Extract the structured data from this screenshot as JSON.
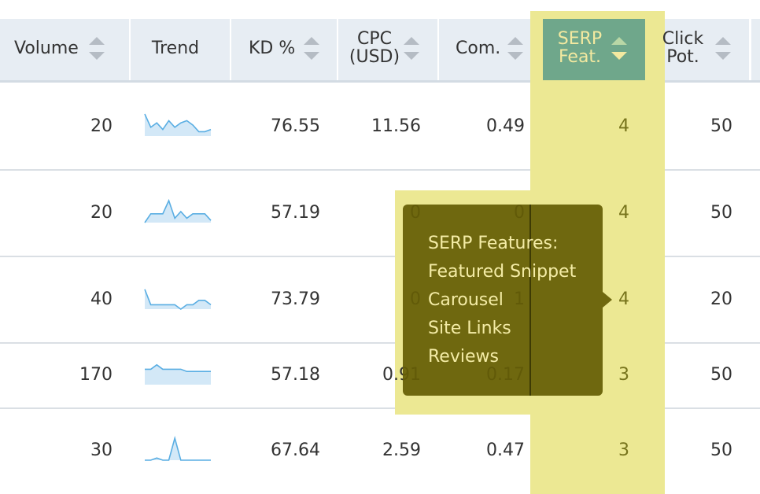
{
  "headers": [
    [
      "Volume"
    ],
    [
      "Trend"
    ],
    [
      "KD %"
    ],
    [
      "CPC",
      "(USD)"
    ],
    [
      "Com."
    ],
    [
      "SERP",
      "Feat."
    ],
    [
      "Click",
      "Pot."
    ]
  ],
  "rows": [
    {
      "volume": 20,
      "trend": [
        100,
        40,
        60,
        30,
        70,
        40,
        60,
        70,
        50,
        20,
        20,
        30
      ],
      "kd": 76.55,
      "cpc": 11.56,
      "com": 0.49,
      "serp": 4,
      "click": 50
    },
    {
      "volume": 20,
      "trend": [
        0,
        40,
        40,
        40,
        100,
        20,
        50,
        20,
        40,
        40,
        40,
        10
      ],
      "kd": 57.19,
      "cpc": 0,
      "com": 0,
      "serp": 4,
      "click": 50
    },
    {
      "volume": 40,
      "trend": [
        90,
        20,
        20,
        20,
        20,
        20,
        0,
        20,
        20,
        40,
        40,
        20
      ],
      "kd": 73.79,
      "cpc": 0,
      "com": 1,
      "serp": 4,
      "click": 20
    },
    {
      "volume": 170,
      "trend": [
        70,
        70,
        90,
        70,
        70,
        70,
        70,
        60,
        60,
        60,
        60,
        60
      ],
      "kd": 57.18,
      "cpc": 0.91,
      "com": 0.17,
      "serp": 3,
      "click": 50
    },
    {
      "volume": 30,
      "trend": [
        0,
        0,
        10,
        0,
        0,
        100,
        0,
        0,
        0,
        0,
        0,
        0
      ],
      "kd": 67.64,
      "cpc": 2.59,
      "com": 0.47,
      "serp": 3,
      "click": 50
    }
  ],
  "tooltip": {
    "title": "SERP Features:",
    "items": [
      "Featured Snippet",
      "Carousel",
      "Site Links",
      "Reviews"
    ]
  }
}
